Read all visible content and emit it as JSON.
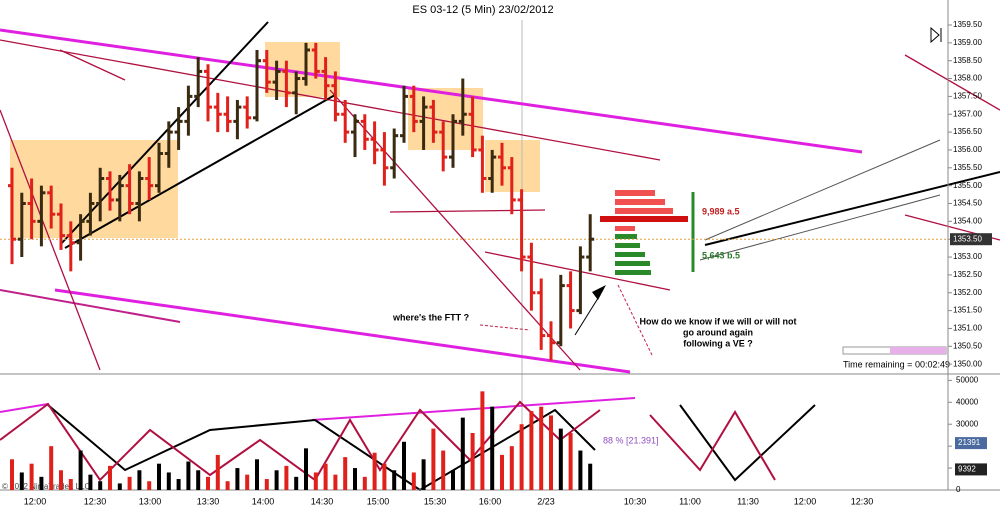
{
  "chart_data": [
    {
      "type": "ohlc",
      "title": "ES 03-12 (5 Min)  23/02/2012",
      "open": [
        1355.0,
        1353.5,
        1354.5,
        1354.0,
        1354.8,
        1354.2,
        1353.6,
        1353.4,
        1354.0,
        1354.5,
        1355.2,
        1354.6,
        1355.0,
        1354.5,
        1355.2,
        1355.0,
        1355.9,
        1356.5,
        1356.8,
        1357.5,
        1358.2,
        1357.2,
        1357.0,
        1356.8,
        1357.2,
        1356.9,
        1358.5,
        1357.9,
        1358.2,
        1357.6,
        1358.0,
        1358.8,
        1358.2,
        1357.8,
        1357.0,
        1356.5,
        1356.8,
        1356.3,
        1356.0,
        1355.5,
        1356.4,
        1357.5,
        1356.8,
        1357.2,
        1356.5,
        1355.8,
        1356.8,
        1357.0,
        1356.0,
        1355.2,
        1355.8,
        1355.5,
        1354.6,
        1353.0,
        1352.0,
        1350.8,
        1350.6,
        1352.2,
        1351.5,
        1353.0
      ],
      "high": [
        1355.5,
        1354.8,
        1355.2,
        1355.0,
        1355.0,
        1354.5,
        1354.0,
        1354.2,
        1354.8,
        1355.5,
        1355.4,
        1355.3,
        1355.6,
        1355.4,
        1355.8,
        1356.2,
        1356.8,
        1357.2,
        1357.8,
        1358.6,
        1358.4,
        1357.6,
        1357.5,
        1357.4,
        1357.5,
        1358.8,
        1358.8,
        1358.5,
        1358.5,
        1358.2,
        1359.0,
        1359.0,
        1358.6,
        1358.2,
        1357.4,
        1357.0,
        1357.0,
        1356.8,
        1356.5,
        1356.6,
        1357.8,
        1357.8,
        1357.5,
        1357.4,
        1356.8,
        1357.0,
        1358.0,
        1357.5,
        1356.4,
        1356.0,
        1356.2,
        1355.8,
        1354.9,
        1353.4,
        1352.4,
        1351.2,
        1352.5,
        1352.6,
        1353.3,
        1354.2
      ],
      "low": [
        1352.8,
        1353.0,
        1353.5,
        1353.3,
        1353.8,
        1353.2,
        1352.6,
        1352.9,
        1353.6,
        1354.0,
        1354.3,
        1354.0,
        1354.2,
        1354.0,
        1354.6,
        1354.8,
        1355.5,
        1356.0,
        1356.4,
        1357.2,
        1356.8,
        1356.5,
        1356.5,
        1356.3,
        1356.6,
        1356.8,
        1357.6,
        1357.4,
        1357.2,
        1357.0,
        1357.8,
        1358.0,
        1357.4,
        1356.8,
        1356.2,
        1355.8,
        1356.0,
        1355.6,
        1355.0,
        1355.2,
        1356.2,
        1356.5,
        1356.0,
        1356.2,
        1355.4,
        1355.5,
        1356.4,
        1355.8,
        1354.8,
        1354.8,
        1355.0,
        1354.2,
        1352.6,
        1351.5,
        1350.4,
        1350.1,
        1350.5,
        1351.0,
        1351.4,
        1352.6
      ],
      "close": [
        1353.5,
        1354.5,
        1354.0,
        1354.8,
        1354.2,
        1353.6,
        1353.4,
        1354.0,
        1354.5,
        1355.2,
        1354.6,
        1355.0,
        1354.5,
        1355.2,
        1355.0,
        1355.9,
        1356.5,
        1356.8,
        1357.5,
        1358.2,
        1357.2,
        1357.0,
        1356.8,
        1357.2,
        1356.9,
        1358.5,
        1357.9,
        1358.2,
        1357.6,
        1358.0,
        1358.8,
        1358.2,
        1357.8,
        1357.0,
        1356.5,
        1356.8,
        1356.3,
        1356.0,
        1355.5,
        1356.4,
        1357.5,
        1356.8,
        1357.2,
        1356.5,
        1355.8,
        1356.8,
        1357.0,
        1356.0,
        1355.2,
        1355.8,
        1355.5,
        1354.6,
        1353.0,
        1352.0,
        1350.8,
        1350.6,
        1352.2,
        1351.5,
        1353.0,
        1353.5
      ],
      "up_color": "#3a2a10",
      "down_color": "#e0201a",
      "ylim": [
        1349.78,
        1359.64
      ],
      "yticks": [
        {
          "value": 1350.0,
          "label": "1350.00"
        },
        {
          "value": 1350.5,
          "label": "1350.50"
        },
        {
          "value": 1351.0,
          "label": "1351.00"
        },
        {
          "value": 1351.5,
          "label": "1351.50"
        },
        {
          "value": 1352.0,
          "label": "1352.00"
        },
        {
          "value": 1352.5,
          "label": "1352.50"
        },
        {
          "value": 1353.0,
          "label": "1353.00"
        },
        {
          "value": 1353.5,
          "label": "1353.50"
        },
        {
          "value": 1354.0,
          "label": "1354.00"
        },
        {
          "value": 1354.5,
          "label": "1354.50"
        },
        {
          "value": 1355.0,
          "label": "1355.00"
        },
        {
          "value": 1355.5,
          "label": "1355.50"
        },
        {
          "value": 1356.0,
          "label": "1356.00"
        },
        {
          "value": 1356.5,
          "label": "1356.50"
        },
        {
          "value": 1357.0,
          "label": "1357.00"
        },
        {
          "value": 1357.5,
          "label": "1357.50"
        },
        {
          "value": 1358.0,
          "label": "1358.00"
        },
        {
          "value": 1358.5,
          "label": "1358.50"
        },
        {
          "value": 1359.0,
          "label": "1359.00"
        },
        {
          "value": 1359.5,
          "label": "1359.50"
        }
      ],
      "last_price": {
        "value": 1353.5,
        "label": "1353.50"
      },
      "ask_label": "9,989 a.5",
      "bid_label": "5,643 b.5",
      "annotation_ftt": "where's the FTT ?",
      "annotation_question": [
        "How do we know if we will or will not",
        "go around again",
        "following a VE ?"
      ],
      "time_remaining": "Time remaining = 00:02:49"
    },
    {
      "type": "volume",
      "values": [
        14000,
        8000,
        12000,
        6000,
        20000,
        9000,
        5000,
        18000,
        7000,
        4000,
        11000,
        3000,
        6000,
        9000,
        4000,
        12000,
        8000,
        5000,
        13000,
        9000,
        6000,
        16000,
        4000,
        10000,
        7000,
        14000,
        5000,
        9000,
        11000,
        6000,
        19000,
        8000,
        12000,
        7000,
        15000,
        10000,
        6000,
        17000,
        12000,
        9000,
        22000,
        8000,
        14000,
        28000,
        18000,
        9000,
        33000,
        26000,
        45000,
        38000,
        16000,
        20000,
        30000,
        36000,
        38000,
        34000,
        28000,
        26000,
        18000,
        12000
      ],
      "ylim": [
        0,
        52000
      ],
      "yticks": [
        0,
        10000,
        20000,
        30000,
        40000,
        50000
      ],
      "markers": [
        {
          "value": 21391,
          "label": "21391"
        },
        {
          "value": 9392,
          "label": "9392"
        }
      ],
      "percent_label": "88 % [21.391]",
      "xtick_labels": [
        "12:00",
        "12:30",
        "13:00",
        "13:30",
        "14:00",
        "14:30",
        "15:00",
        "15:30",
        "16:00",
        "2/23",
        "10:30",
        "11:00",
        "11:30",
        "12:00",
        "12:30"
      ],
      "copyright": "© 2012 NinjaTrader, LLC"
    }
  ]
}
